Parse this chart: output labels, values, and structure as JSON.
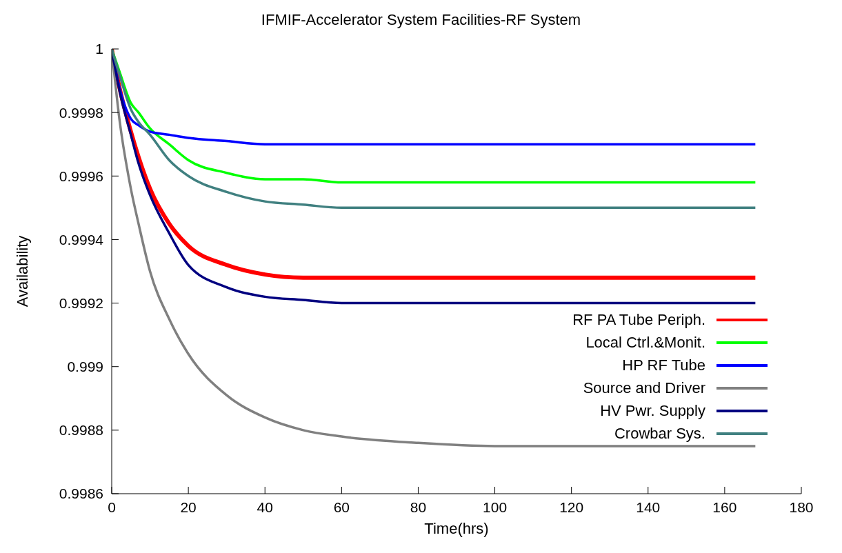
{
  "chart_data": {
    "type": "line",
    "title": "IFMIF-Accelerator System Facilities-RF System",
    "xlabel": "Time(hrs)",
    "ylabel": "Availability",
    "x": [
      0,
      2,
      5,
      7,
      10,
      15,
      20,
      30,
      40,
      50,
      60,
      80,
      100,
      120,
      140,
      168
    ],
    "series": [
      {
        "name": "RF PA Tube Periph.",
        "color": "#ff0000",
        "values": [
          1,
          0.99988,
          0.99974,
          0.99966,
          0.99956,
          0.99945,
          0.99938,
          0.99932,
          0.99929,
          0.99928,
          0.99928,
          0.99928,
          0.99928,
          0.99928,
          0.99928,
          0.99928
        ]
      },
      {
        "name": "Local Ctrl.&Monit.",
        "color": "#00ff00",
        "values": [
          1,
          0.99993,
          0.99983,
          0.9998,
          0.99975,
          0.9997,
          0.99965,
          0.99961,
          0.99959,
          0.99959,
          0.99958,
          0.99958,
          0.99958,
          0.99958,
          0.99958,
          0.99958
        ]
      },
      {
        "name": "HP RF Tube",
        "color": "#0000ff",
        "values": [
          1,
          0.99988,
          0.99978,
          0.99976,
          0.99974,
          0.99973,
          0.99972,
          0.99971,
          0.9997,
          0.9997,
          0.9997,
          0.9997,
          0.9997,
          0.9997,
          0.9997,
          0.9997
        ]
      },
      {
        "name": "Source and Driver",
        "color": "#808080",
        "values": [
          1,
          0.99978,
          0.99956,
          0.99945,
          0.9993,
          0.99915,
          0.99904,
          0.99891,
          0.99884,
          0.9988,
          0.99878,
          0.99876,
          0.99875,
          0.99875,
          0.99875,
          0.99875
        ]
      },
      {
        "name": "HV Pwr. Supply",
        "color": "#000080",
        "values": [
          1,
          0.99987,
          0.99973,
          0.99964,
          0.99954,
          0.99942,
          0.99932,
          0.99925,
          0.99922,
          0.99921,
          0.9992,
          0.9992,
          0.9992,
          0.9992,
          0.9992,
          0.9992
        ]
      },
      {
        "name": "Crowbar Sys.",
        "color": "#408080",
        "values": [
          1,
          0.99992,
          0.99981,
          0.99977,
          0.99973,
          0.99965,
          0.9996,
          0.99955,
          0.99952,
          0.99951,
          0.9995,
          0.9995,
          0.9995,
          0.9995,
          0.9995,
          0.9995
        ]
      }
    ],
    "xlim": [
      0,
      180
    ],
    "xticks": [
      0,
      20,
      40,
      60,
      80,
      100,
      120,
      140,
      160,
      180
    ],
    "ylim": [
      0.9986,
      1
    ],
    "yticks": [
      0.9986,
      0.9988,
      0.999,
      0.9992,
      0.9994,
      0.9996,
      0.9998,
      1
    ],
    "legend": "bottom right",
    "grid": false,
    "marker": "none",
    "line_style": "solid"
  }
}
